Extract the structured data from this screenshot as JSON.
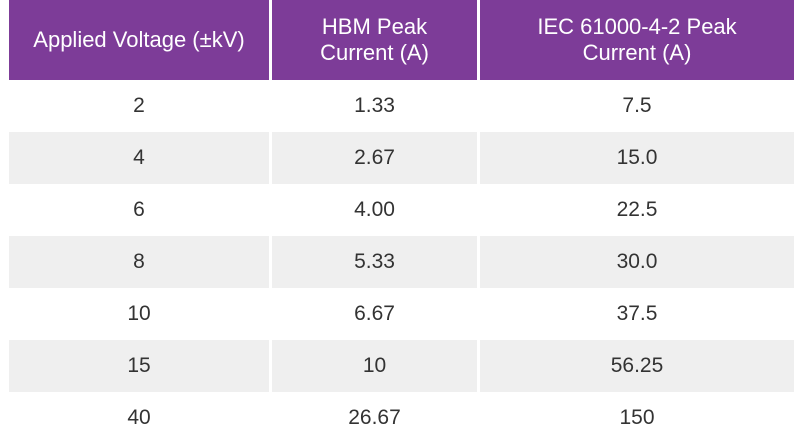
{
  "table": {
    "header": [
      "Applied Voltage (±kV)",
      "HBM Peak Current (A)",
      "IEC 61000-4-2 Peak Current (A)"
    ],
    "rows": [
      [
        "2",
        "1.33",
        "7.5"
      ],
      [
        "4",
        "2.67",
        "15.0"
      ],
      [
        "6",
        "4.00",
        "22.5"
      ],
      [
        "8",
        "5.33",
        "30.0"
      ],
      [
        "10",
        "6.67",
        "37.5"
      ],
      [
        "15",
        "10",
        "56.25"
      ],
      [
        "40",
        "26.67",
        "150"
      ]
    ]
  }
}
